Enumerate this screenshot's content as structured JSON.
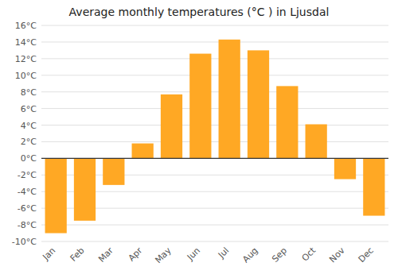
{
  "chart_data": {
    "type": "bar",
    "title": "Average monthly temperatures (°C ) in Ljusdal",
    "categories": [
      "Jan",
      "Feb",
      "Mar",
      "Apr",
      "May",
      "Jun",
      "Jul",
      "Aug",
      "Sep",
      "Oct",
      "Nov",
      "Dec"
    ],
    "values": [
      -9,
      -7.5,
      -3.2,
      1.8,
      7.7,
      12.6,
      14.3,
      13.0,
      8.7,
      4.1,
      -2.5,
      -6.9
    ],
    "color": "#FFA824",
    "ylim": [
      -10,
      16
    ],
    "yticks": [
      {
        "value": -10,
        "label": "-10°C"
      },
      {
        "value": -8,
        "label": "-8°C"
      },
      {
        "value": -6,
        "label": "-6°C"
      },
      {
        "value": -4,
        "label": "-4°C"
      },
      {
        "value": -2,
        "label": "-2°C"
      },
      {
        "value": 0,
        "label": "0°C"
      },
      {
        "value": 2,
        "label": "2°C"
      },
      {
        "value": 4,
        "label": "4°C"
      },
      {
        "value": 6,
        "label": "6°C"
      },
      {
        "value": 8,
        "label": "8°C"
      },
      {
        "value": 10,
        "label": "10°C"
      },
      {
        "value": 12,
        "label": "12°C"
      },
      {
        "value": 14,
        "label": "14°C"
      },
      {
        "value": 16,
        "label": "16°C"
      }
    ],
    "grid": true
  }
}
